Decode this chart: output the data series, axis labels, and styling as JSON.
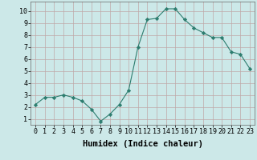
{
  "x": [
    0,
    1,
    2,
    3,
    4,
    5,
    6,
    7,
    8,
    9,
    10,
    11,
    12,
    13,
    14,
    15,
    16,
    17,
    18,
    19,
    20,
    21,
    22,
    23
  ],
  "y": [
    2.2,
    2.8,
    2.8,
    3.0,
    2.8,
    2.5,
    1.8,
    0.8,
    1.4,
    2.2,
    3.4,
    7.0,
    9.3,
    9.4,
    10.2,
    10.2,
    9.3,
    8.6,
    8.2,
    7.8,
    7.8,
    6.6,
    6.4,
    5.2
  ],
  "line_color": "#2d7d6f",
  "marker": "D",
  "marker_size": 2.2,
  "bg_color": "#cce8e8",
  "grid_color": "#c0a8a8",
  "xlabel": "Humidex (Indice chaleur)",
  "ylim": [
    0.5,
    10.8
  ],
  "xlim": [
    -0.5,
    23.5
  ],
  "yticks": [
    1,
    2,
    3,
    4,
    5,
    6,
    7,
    8,
    9,
    10
  ],
  "xticks": [
    0,
    1,
    2,
    3,
    4,
    5,
    6,
    7,
    8,
    9,
    10,
    11,
    12,
    13,
    14,
    15,
    16,
    17,
    18,
    19,
    20,
    21,
    22,
    23
  ],
  "tick_fontsize": 6.0,
  "xlabel_fontsize": 7.5
}
